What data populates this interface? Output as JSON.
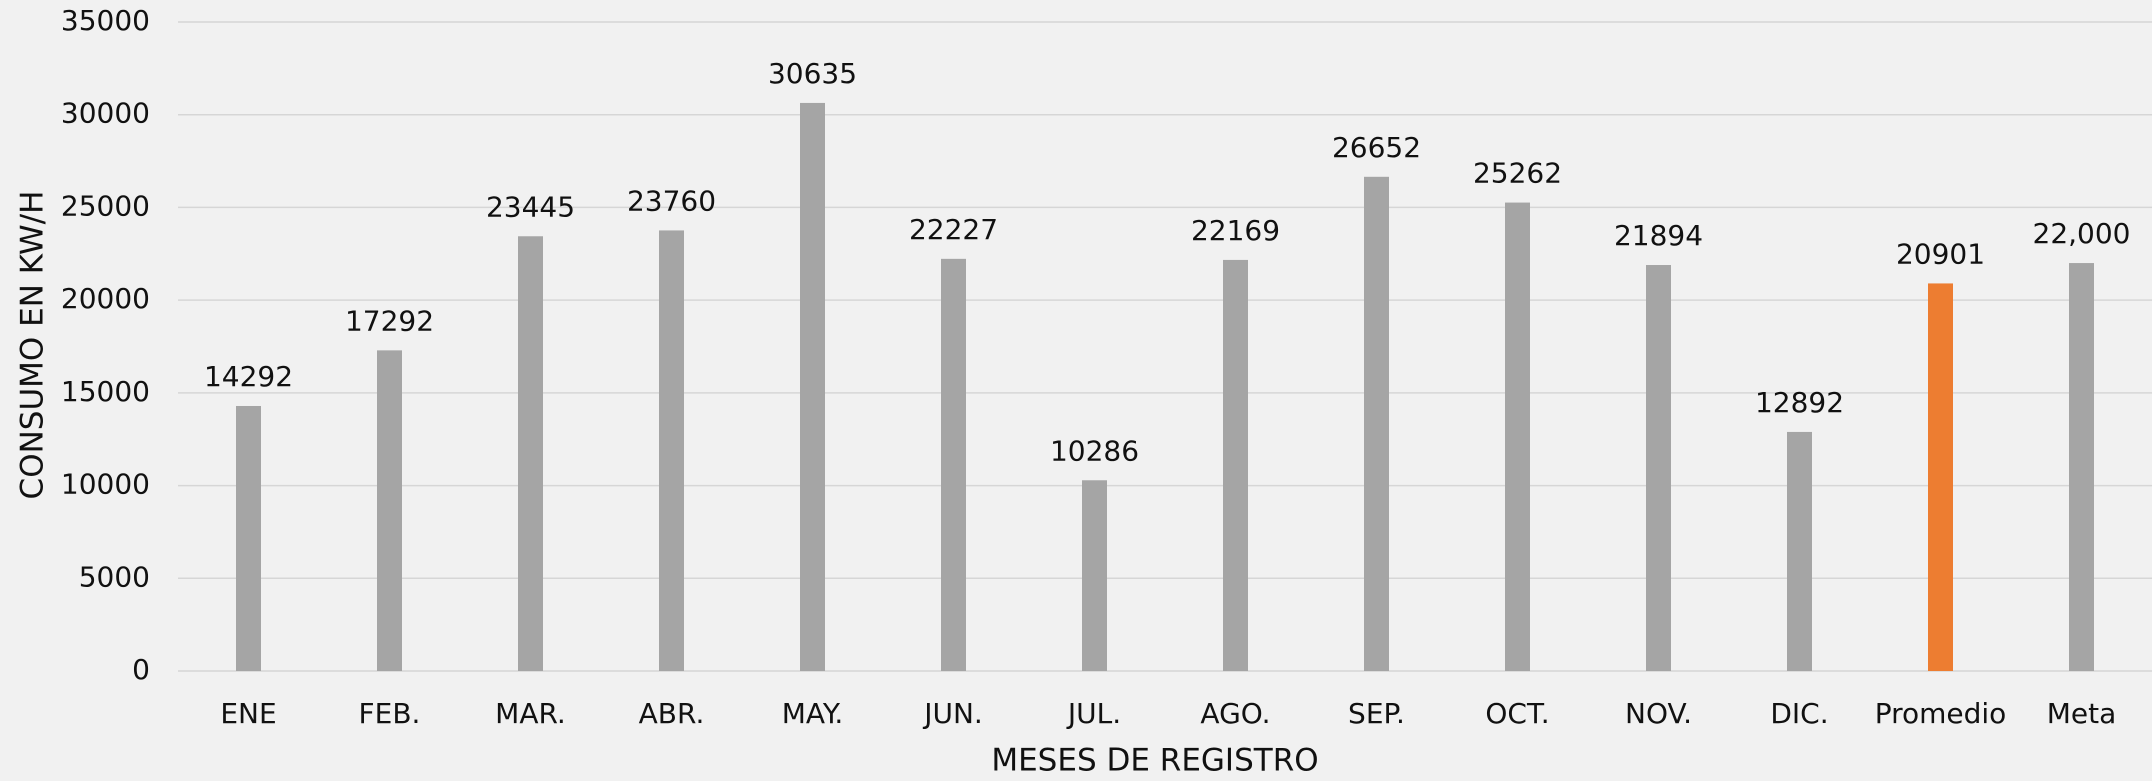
{
  "chart_data": {
    "type": "bar",
    "x_label": "MESES DE REGISTRO",
    "y_label": "CONSUMO EN KW/H",
    "categories": [
      "ENE",
      "FEB.",
      "MAR.",
      "ABR.",
      "MAY.",
      "JUN.",
      "JUL.",
      "AGO.",
      "SEP.",
      "OCT.",
      "NOV.",
      "DIC.",
      "Promedio",
      "Meta"
    ],
    "values": [
      14292,
      17292,
      23445,
      23760,
      30635,
      22227,
      10286,
      22169,
      26652,
      25262,
      21894,
      12892,
      20901,
      22000
    ],
    "value_labels": [
      "14292",
      "17292",
      "23445",
      "23760",
      "30635",
      "22227",
      "10286",
      "22169",
      "26652",
      "25262",
      "21894",
      "12892",
      "20901",
      "22,000"
    ],
    "colors": [
      "#a5a5a5",
      "#a5a5a5",
      "#a5a5a5",
      "#a5a5a5",
      "#a5a5a5",
      "#a5a5a5",
      "#a5a5a5",
      "#a5a5a5",
      "#a5a5a5",
      "#a5a5a5",
      "#a5a5a5",
      "#a5a5a5",
      "#ed7d31",
      "#a5a5a5"
    ],
    "ylim": [
      0,
      35000
    ],
    "yticks": [
      0,
      5000,
      10000,
      15000,
      20000,
      25000,
      30000,
      35000
    ],
    "grid": true
  }
}
